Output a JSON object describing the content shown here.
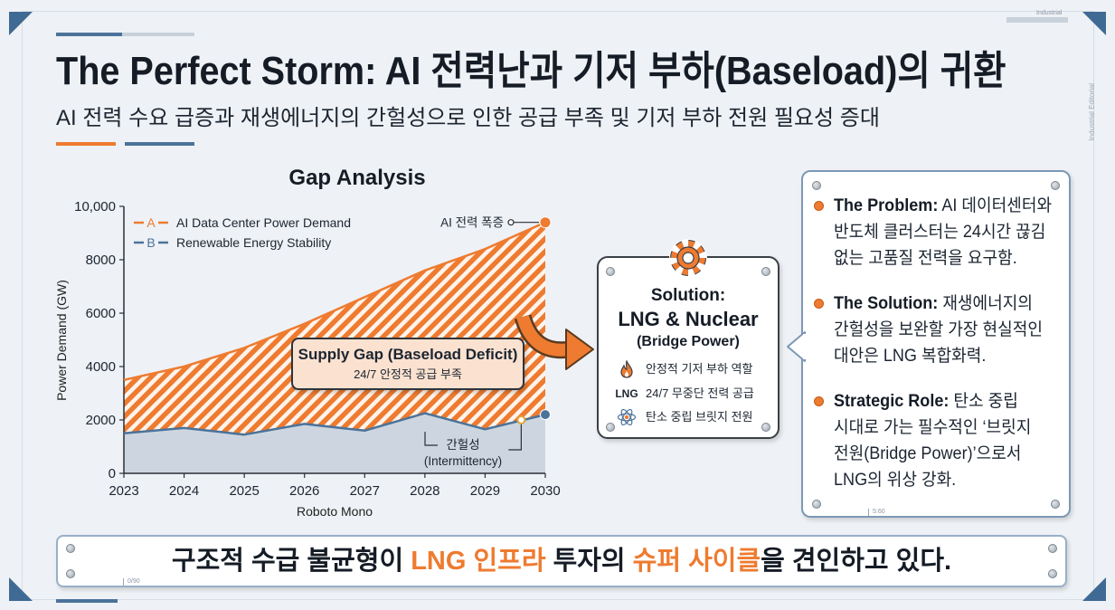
{
  "header": {
    "title": "The Perfect Storm: AI 전력난과 기저 부하(Baseload)의 귀환",
    "subtitle": "AI 전력 수요 급증과 재생에너지의 간헐성으로 인한 공급 부족 및 기저 부하 전원 필요성 증대",
    "corner_tag": "Industrial",
    "side_tag": "Industrial Editorial"
  },
  "chart_data": {
    "type": "area",
    "title": "Gap Analysis",
    "xlabel": "Roboto Mono",
    "ylabel": "Power Demand (GW)",
    "categories": [
      "2023",
      "2024",
      "2025",
      "2026",
      "2027",
      "2028",
      "2029",
      "2030"
    ],
    "x": [
      2023,
      2024,
      2025,
      2026,
      2027,
      2028,
      2029,
      2030
    ],
    "ylim": [
      0,
      10000
    ],
    "y_ticks": [
      {
        "value": 10000,
        "label": "10,000"
      },
      {
        "value": 8000,
        "label": "8000"
      },
      {
        "value": 6000,
        "label": "6000"
      },
      {
        "value": 4000,
        "label": "4000"
      },
      {
        "value": 2000,
        "label": "2000"
      },
      {
        "value": 0,
        "label": "0"
      }
    ],
    "legend": "top-left",
    "series": [
      {
        "key": "A",
        "name": "AI Data Center Power Demand",
        "color": "#ee7b30",
        "values": [
          3500,
          4000,
          4700,
          5600,
          6600,
          7600,
          8400,
          9400
        ]
      },
      {
        "key": "B",
        "name": "Renewable Energy Stability",
        "color": "#4b739a",
        "values": [
          1500,
          1700,
          1450,
          1850,
          1600,
          2250,
          1650,
          2200
        ]
      }
    ],
    "annotations": {
      "peak": {
        "label": "AI 전력 폭증",
        "x": 2030,
        "y": 9400
      },
      "intermittency": {
        "label": "간헐성",
        "sublabel": "(Intermittency)",
        "x": 2029.6,
        "y": 2000
      },
      "gap": {
        "title": "Supply Gap (Baseload Deficit)",
        "subtitle": "24/7 안정적 공급 부족"
      }
    }
  },
  "solution": {
    "icon": "gear-icon",
    "line1": "Solution:",
    "line2": "LNG & Nuclear",
    "line3": "(Bridge Power)",
    "items": [
      {
        "icon": "flame-icon",
        "text": "안정적 기저 부하 역할"
      },
      {
        "icon_text": "LNG",
        "text": "24/7 무중단 전력 공급"
      },
      {
        "icon": "atom-icon",
        "text": "탄소 중립 브릿지 전원"
      }
    ]
  },
  "panel": {
    "items": [
      {
        "label": "The Problem:",
        "lines": [
          "AI 데이터센터와",
          "반도체 클러스터는 24시간 끊김",
          "없는 고품질 전력을 요구함."
        ]
      },
      {
        "label": "The Solution:",
        "lines": [
          "재생에너지의",
          "간헐성을 보완할 가장 현실적인",
          "대안은 LNG 복합화력."
        ]
      },
      {
        "label": "Strategic Role:",
        "lines": [
          "탄소 중립",
          "시대로 가는 필수적인 ‘브릿지",
          "전원(Bridge Power)’으로서",
          "LNG의 위상 강화."
        ]
      }
    ],
    "tag": "5:60"
  },
  "banner": {
    "text_1": "구조적 수급 불균형이 ",
    "highlight_1": "LNG 인프라",
    "text_2": " 투자의 ",
    "highlight_2": "슈퍼 사이클",
    "text_3": "을 견인하고 있다.",
    "tag": "0/90"
  },
  "colors": {
    "accent_orange": "#ee7b30",
    "accent_blue": "#4b739a",
    "background": "#eef1f5"
  }
}
